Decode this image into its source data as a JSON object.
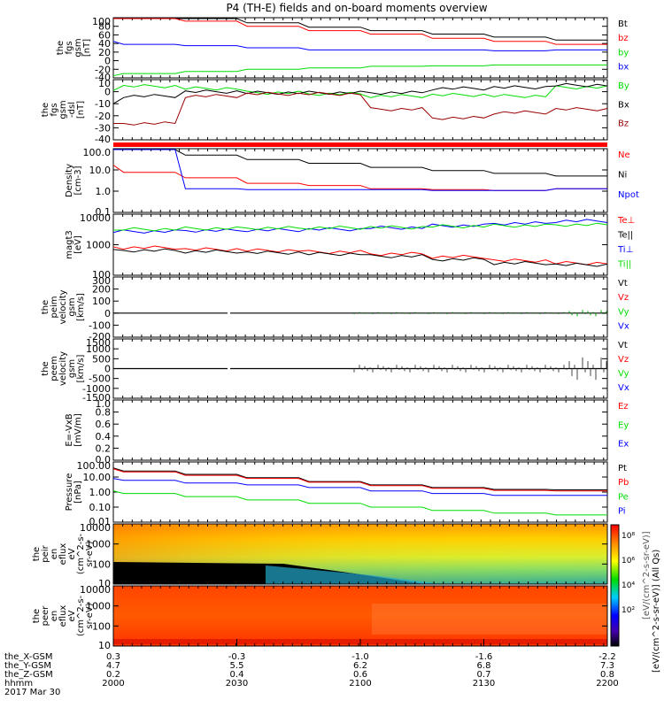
{
  "title": "P4 (TH-E) fields and on-board moments overview",
  "colors": {
    "black": "#000000",
    "red": "#ff0000",
    "green": "#00dd00",
    "blue": "#0000ff",
    "dark_red": "#990000"
  },
  "panels": [
    {
      "id": "fgs-gsm",
      "ylabel": [
        "the",
        "fgs",
        "gsm",
        "[nT]"
      ],
      "yticks": [
        "100",
        "80",
        "60",
        "40",
        "20",
        "0",
        "-20",
        "-40"
      ],
      "ylim": [
        -40,
        100
      ],
      "legend": [
        {
          "label": "Bt",
          "color": "#000000"
        },
        {
          "label": "bz",
          "color": "#ff0000"
        },
        {
          "label": "by",
          "color": "#00dd00"
        },
        {
          "label": "bx",
          "color": "#0000ff"
        }
      ]
    },
    {
      "id": "fgs-dsl",
      "ylabel": [
        "the",
        "fgs",
        "gsm",
        "-dsl",
        "[nT]"
      ],
      "yticks": [
        "10",
        "0",
        "-10",
        "-20",
        "-30",
        "-40"
      ],
      "ylim": [
        -45,
        10
      ],
      "legend": [
        {
          "label": "By",
          "color": "#00dd00"
        },
        {
          "label": "Bx",
          "color": "#000000"
        },
        {
          "label": "Bz",
          "color": "#990000"
        }
      ]
    },
    {
      "id": "density",
      "ylabel": [
        "Density",
        "[cm-3]"
      ],
      "yticks": [
        "100.0",
        "10.0",
        "1.0",
        "0.1"
      ],
      "scale": "log",
      "legend": [
        {
          "label": "Ne",
          "color": "#ff0000"
        },
        {
          "label": "Ni",
          "color": "#000000"
        },
        {
          "label": "Npot",
          "color": "#0000ff"
        }
      ]
    },
    {
      "id": "temperature",
      "ylabel": [
        "magt3",
        "[eV]"
      ],
      "yticks": [
        "10000",
        "1000",
        "100"
      ],
      "scale": "log",
      "legend": [
        {
          "label": "Te⊥",
          "color": "#ff0000"
        },
        {
          "label": "Te||",
          "color": "#000000"
        },
        {
          "label": "Ti⊥",
          "color": "#0000ff"
        },
        {
          "label": "Ti||",
          "color": "#00dd00"
        }
      ]
    },
    {
      "id": "peim-velocity",
      "ylabel": [
        "the",
        "peim",
        "velocity",
        "gsm",
        "[km/s]"
      ],
      "yticks": [
        "300",
        "200",
        "100",
        "0",
        "-100",
        "-200"
      ],
      "ylim": [
        -200,
        300
      ],
      "legend": [
        {
          "label": "Vt",
          "color": "#000000"
        },
        {
          "label": "Vz",
          "color": "#ff0000"
        },
        {
          "label": "Vy",
          "color": "#00dd00"
        },
        {
          "label": "Vx",
          "color": "#0000ff"
        }
      ]
    },
    {
      "id": "peem-velocity",
      "ylabel": [
        "the",
        "peem",
        "velocity",
        "gsm",
        "[km/s]"
      ],
      "yticks": [
        "1500",
        "1000",
        "500",
        "0",
        "-500",
        "-1000",
        "-1500"
      ],
      "ylim": [
        -1500,
        1500
      ],
      "legend": [
        {
          "label": "Vt",
          "color": "#000000"
        },
        {
          "label": "Vz",
          "color": "#ff0000"
        },
        {
          "label": "Vy",
          "color": "#00dd00"
        },
        {
          "label": "Vx",
          "color": "#0000ff"
        }
      ]
    },
    {
      "id": "efield",
      "ylabel": [
        "E=-VxB",
        "[mV/m]"
      ],
      "yticks": [
        "1.0",
        "0.8",
        "0.6",
        "0.4",
        "0.2",
        "0.0"
      ],
      "ylim": [
        0,
        1
      ],
      "legend": [
        {
          "label": "Ez",
          "color": "#ff0000"
        },
        {
          "label": "Ey",
          "color": "#00dd00"
        },
        {
          "label": "Ex",
          "color": "#0000ff"
        }
      ]
    },
    {
      "id": "pressure",
      "ylabel": [
        "Pressure",
        "[nPa]"
      ],
      "yticks": [
        "100.00",
        "10.00",
        "1.00",
        "0.10",
        "0.01"
      ],
      "scale": "log",
      "legend": [
        {
          "label": "Pt",
          "color": "#000000"
        },
        {
          "label": "Pb",
          "color": "#ff0000"
        },
        {
          "label": "Pe",
          "color": "#00dd00"
        },
        {
          "label": "Pi",
          "color": "#0000ff"
        }
      ]
    },
    {
      "id": "peir-spectrogram",
      "ylabel": [
        "the",
        "peir",
        "en",
        "eflux",
        "eV",
        "(cm^2-s-",
        "sr-eV)"
      ],
      "yticks": [
        "10000",
        "1000",
        "100",
        "10"
      ],
      "scale": "log"
    },
    {
      "id": "peer-spectrogram",
      "ylabel": [
        "the",
        "peer",
        "en",
        "eflux",
        "eV",
        "(cm^2-s-",
        "sr-eV)"
      ],
      "yticks": [
        "10000",
        "1000",
        "100",
        "10"
      ],
      "scale": "log"
    }
  ],
  "colorbar": {
    "ticks": [
      "10^8",
      "10^6",
      "10^4",
      "10^2"
    ],
    "label": "[eV/(cm^2-s-sr-eV)] (All Qs)",
    "overlay_label": "[eV/(cm^2-s-sr-eV)]"
  },
  "x_axis": {
    "row_labels": [
      "the_X-GSM",
      "the_Y-GSM",
      "the_Z-GSM",
      "hhmm"
    ],
    "date": "2017 Mar 30",
    "ticks": [
      {
        "values": [
          "0.3",
          "4.7",
          "0.2",
          "2000"
        ]
      },
      {
        "values": [
          "-0.3",
          "5.5",
          "0.4",
          "2030"
        ]
      },
      {
        "values": [
          "-1.0",
          "6.2",
          "0.6",
          "2100"
        ]
      },
      {
        "values": [
          "-1.6",
          "6.8",
          "0.7",
          "2130"
        ]
      },
      {
        "values": [
          "-2.2",
          "7.3",
          "0.8",
          "2200"
        ]
      }
    ]
  },
  "chart_data": {
    "type": "line",
    "x": [
      "2000",
      "2015",
      "2030",
      "2045",
      "2100",
      "2115",
      "2130",
      "2145",
      "2200"
    ],
    "series": [
      {
        "panel": "fgs-gsm",
        "name": "Bt",
        "values": [
          128,
          115,
          100,
          88,
          78,
          70,
          62,
          55,
          48
        ]
      },
      {
        "panel": "fgs-gsm",
        "name": "bz",
        "values": [
          118,
          105,
          92,
          80,
          70,
          62,
          52,
          45,
          38
        ]
      },
      {
        "panel": "fgs-gsm",
        "name": "by",
        "values": [
          -35,
          -30,
          -25,
          -20,
          -17,
          -13,
          -12,
          -10,
          -10
        ]
      },
      {
        "panel": "fgs-gsm",
        "name": "bx",
        "values": [
          45,
          38,
          35,
          30,
          25,
          25,
          25,
          23,
          25
        ]
      },
      {
        "panel": "fgs-dsl",
        "name": "By",
        "values": [
          0,
          4,
          2,
          -2,
          -3,
          -5,
          -4,
          -5,
          3
        ]
      },
      {
        "panel": "fgs-dsl",
        "name": "Bx",
        "values": [
          -12,
          -5,
          -1,
          -2,
          -2,
          -2,
          2,
          3,
          5
        ]
      },
      {
        "panel": "fgs-dsl",
        "name": "Bz",
        "values": [
          -30,
          -30,
          -5,
          -3,
          -3,
          -17,
          -25,
          -20,
          -17
        ]
      },
      {
        "panel": "density",
        "name": "Ne",
        "values": [
          20,
          8,
          4,
          2,
          1.5,
          1,
          0.9,
          0.8,
          1
        ]
      },
      {
        "panel": "density",
        "name": "Ni",
        "values": [
          300,
          150,
          70,
          40,
          25,
          15,
          10,
          7,
          5
        ]
      },
      {
        "panel": "density",
        "name": "Npot",
        "values": [
          400,
          200,
          1,
          0.9,
          0.9,
          0.9,
          0.8,
          0.8,
          1
        ]
      },
      {
        "panel": "temperature",
        "name": "Te⊥",
        "values": [
          850,
          800,
          700,
          650,
          580,
          500,
          400,
          300,
          250
        ]
      },
      {
        "panel": "temperature",
        "name": "Te||",
        "values": [
          700,
          650,
          600,
          550,
          500,
          420,
          330,
          250,
          220
        ]
      },
      {
        "panel": "temperature",
        "name": "Ti⊥",
        "values": [
          2500,
          2700,
          2900,
          3000,
          3200,
          3600,
          4200,
          5000,
          6000
        ]
      },
      {
        "panel": "temperature",
        "name": "Ti||",
        "values": [
          3000,
          3200,
          3400,
          3500,
          3600,
          3700,
          4000,
          4200,
          4500
        ]
      },
      {
        "panel": "pressure",
        "name": "Pt",
        "values": [
          40,
          25,
          15,
          9,
          5,
          3,
          2,
          1.5,
          1.4
        ]
      },
      {
        "panel": "pressure",
        "name": "Pb",
        "values": [
          35,
          22,
          13,
          8,
          4.5,
          2.7,
          1.8,
          1.3,
          1.2
        ]
      },
      {
        "panel": "pressure",
        "name": "Pe",
        "values": [
          1.2,
          0.8,
          0.5,
          0.3,
          0.18,
          0.1,
          0.06,
          0.04,
          0.03
        ]
      },
      {
        "panel": "pressure",
        "name": "Pi",
        "values": [
          8,
          6,
          4,
          3,
          2,
          1.2,
          0.8,
          0.6,
          0.6
        ]
      }
    ]
  }
}
